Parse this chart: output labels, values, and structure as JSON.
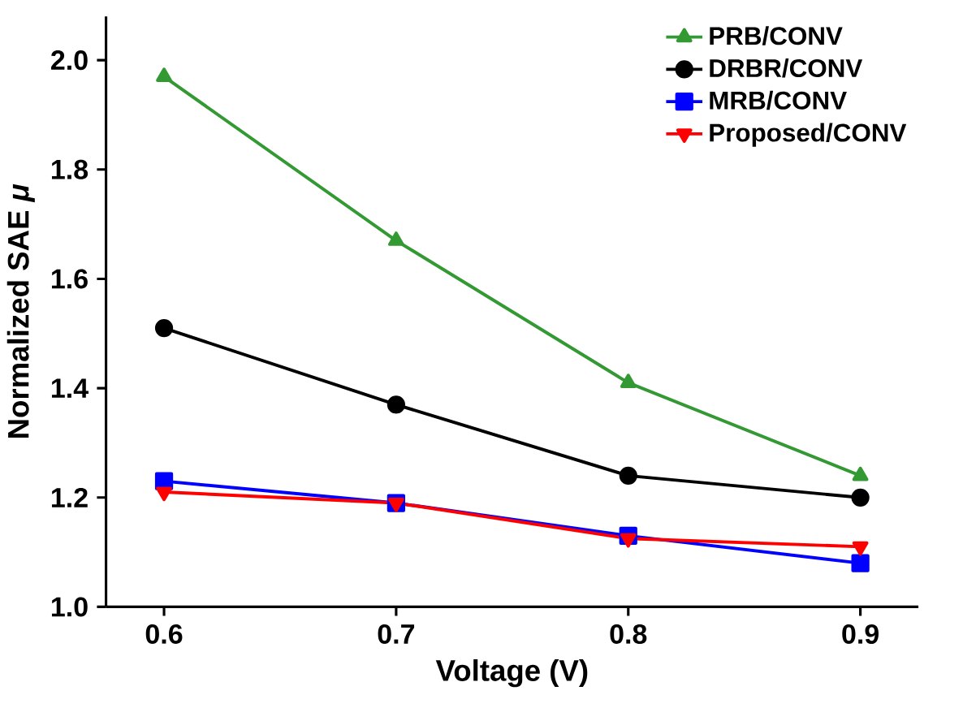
{
  "chart_data": {
    "type": "line",
    "xlabel": "Voltage (V)",
    "ylabel": "Normalized SAE *μ*",
    "x": [
      0.6,
      0.7,
      0.8,
      0.9
    ],
    "xlim": [
      0.575,
      0.925
    ],
    "ylim": [
      1.0,
      2.08
    ],
    "xticks": [
      0.6,
      0.7,
      0.8,
      0.9
    ],
    "yticks": [
      {
        "value": 1.0,
        "label": "1.0"
      },
      1.2,
      1.4,
      1.6,
      1.8,
      {
        "value": 2.0,
        "label": "2.0"
      }
    ],
    "legend": "top right",
    "grid": false,
    "series": [
      {
        "name": "PRB/CONV",
        "color": "#339933",
        "marker": "triangle",
        "values": [
          1.97,
          1.67,
          1.41,
          1.24
        ]
      },
      {
        "name": "DRBR/CONV",
        "color": "#000000",
        "marker": "circle",
        "values": [
          1.51,
          1.37,
          1.24,
          1.2
        ]
      },
      {
        "name": "MRB/CONV",
        "color": "#0000ff",
        "marker": "square",
        "values": [
          1.23,
          1.19,
          1.13,
          1.08
        ]
      },
      {
        "name": "Proposed/CONV",
        "color": "#ff0000",
        "marker": "triangle down",
        "values": [
          1.21,
          1.19,
          1.125,
          1.11
        ]
      }
    ]
  }
}
